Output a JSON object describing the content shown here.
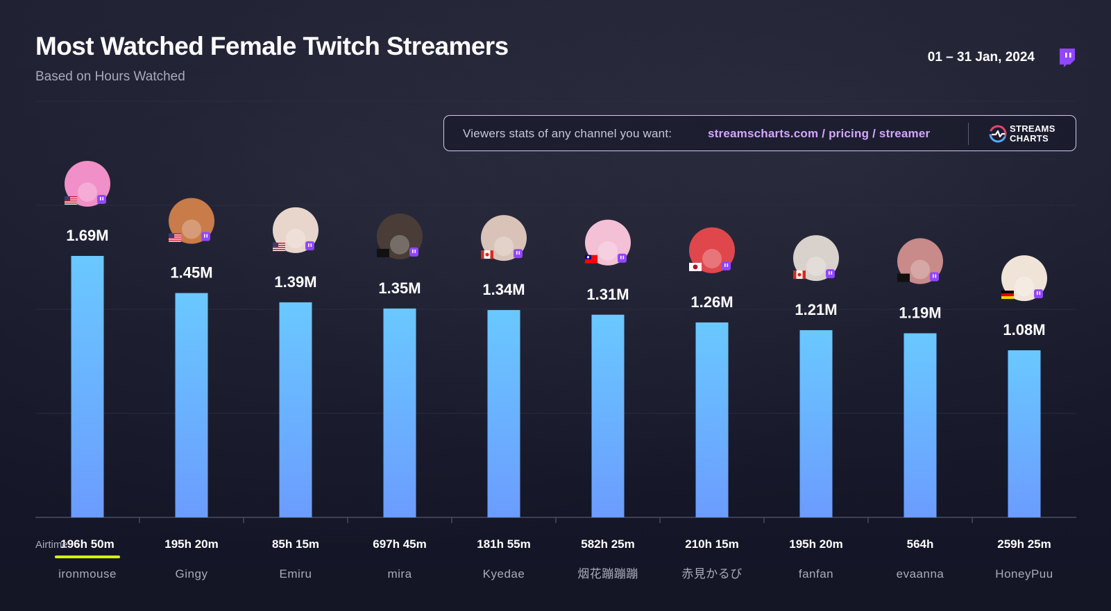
{
  "header": {
    "title": "Most Watched Female Twitch Streamers",
    "subtitle": "Based on Hours Watched",
    "date_range": "01 – 31 Jan, 2024",
    "platform_icon": "twitch-icon"
  },
  "promo": {
    "text": "Viewers stats of any channel you want:",
    "link": "streamscharts.com / pricing / streamer",
    "logo_line1": "STREAMS",
    "logo_line2": "CHARTS",
    "logo_icon": "streams-charts-logo-icon"
  },
  "airtime_label": "Airtime:",
  "colors": {
    "bar_top": "#6ac8ff",
    "bar_bottom": "#6b9cff",
    "highlight_underline": "#d4ff00",
    "twitch_purple": "#9146ff"
  },
  "chart_data": {
    "type": "bar",
    "categories": [
      "ironmouse",
      "Gingy",
      "Emiru",
      "mira",
      "Kyedae",
      "烟花蹦蹦蹦",
      "赤見かるび",
      "fanfan",
      "evaanna",
      "HoneyPuu"
    ],
    "values": [
      1.69,
      1.45,
      1.39,
      1.35,
      1.34,
      1.31,
      1.26,
      1.21,
      1.19,
      1.08
    ],
    "value_labels": [
      "1.69M",
      "1.45M",
      "1.39M",
      "1.35M",
      "1.34M",
      "1.31M",
      "1.26M",
      "1.21M",
      "1.19M",
      "1.08M"
    ],
    "airtime": [
      "196h 50m",
      "195h 20m",
      "85h 15m",
      "697h 45m",
      "181h 55m",
      "582h 25m",
      "210h 15m",
      "195h 20m",
      "564h",
      "259h 25m"
    ],
    "flags": [
      "us",
      "us",
      "us",
      "",
      "ca",
      "tw",
      "jp",
      "ca",
      "",
      "de"
    ],
    "highlighted_airtime_index": 0,
    "ylabel": "",
    "xlabel": "",
    "ylim": [
      0,
      1.69
    ],
    "grid": true
  }
}
